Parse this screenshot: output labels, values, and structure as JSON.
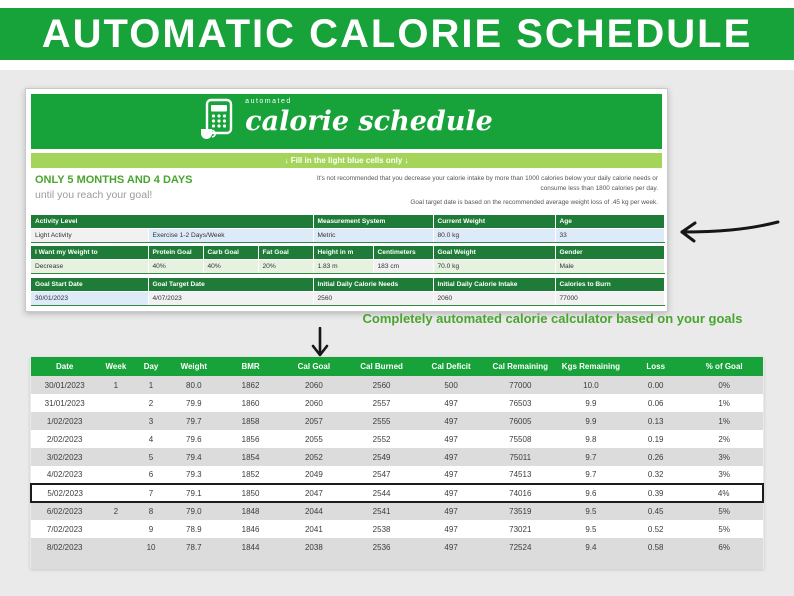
{
  "banner": {
    "title": "AUTOMATIC CALORIE SCHEDULE"
  },
  "sheet": {
    "logo": {
      "icon": "calculator-icon",
      "small_label": "automated",
      "title": "calorie schedule"
    },
    "instruction": "↓ Fill in the light blue cells only ↓",
    "duration_note": {
      "line1": "ONLY 5 MONTHS AND 4 DAYS",
      "line2": "until you reach your goal!"
    },
    "warning_note": {
      "line1": "It's not recommended that you decrease your calorie intake by more than 1000 calories below your daily calorie needs or consume less than 1800 calories per day.",
      "line2": "Goal target date is based on the recommended average weight loss of .45 kg per week."
    },
    "form": {
      "section1": {
        "headers": [
          "Activity Level",
          "Measurement System",
          "Current Weight",
          "Age"
        ],
        "values": [
          "Light Activity",
          "Exercise 1-2 Days/Week",
          "Metric",
          "80.0 kg",
          "33"
        ]
      },
      "section2": {
        "headers": [
          "I Want my Weight to",
          "Protein Goal",
          "Carb Goal",
          "Fat Goal",
          "Height in m",
          "Centimeters",
          "Goal Weight",
          "Gender"
        ],
        "values": [
          "Decrease",
          "40%",
          "40%",
          "20%",
          "1.83 m",
          "183 cm",
          "70.0 kg",
          "Male"
        ]
      },
      "section3": {
        "headers": [
          "Goal Start Date",
          "Goal Target Date",
          "Initial Daily Calorie Needs",
          "Initial Daily Calorie Intake",
          "Calories to Burn"
        ],
        "values": [
          "30/01/2023",
          "4/07/2023",
          "2560",
          "2060",
          "77000"
        ]
      }
    }
  },
  "annotation": "Completely automated calorie calculator based on your goals",
  "schedule_table": {
    "headers": [
      "Date",
      "Week",
      "Day",
      "Weight",
      "BMR",
      "Cal Goal",
      "Cal Burned",
      "Cal Deficit",
      "Cal Remaining",
      "Kgs Remaining",
      "Loss",
      "% of Goal"
    ],
    "rows": [
      {
        "shade": "gray",
        "highlight": false,
        "cells": [
          "30/01/2023",
          "1",
          "1",
          "80.0",
          "1862",
          "2060",
          "2560",
          "500",
          "77000",
          "10.0",
          "0.00",
          "0%"
        ]
      },
      {
        "shade": "white",
        "highlight": false,
        "cells": [
          "31/01/2023",
          "",
          "2",
          "79.9",
          "1860",
          "2060",
          "2557",
          "497",
          "76503",
          "9.9",
          "0.06",
          "1%"
        ]
      },
      {
        "shade": "gray",
        "highlight": false,
        "cells": [
          "1/02/2023",
          "",
          "3",
          "79.7",
          "1858",
          "2057",
          "2555",
          "497",
          "76005",
          "9.9",
          "0.13",
          "1%"
        ]
      },
      {
        "shade": "white",
        "highlight": false,
        "cells": [
          "2/02/2023",
          "",
          "4",
          "79.6",
          "1856",
          "2055",
          "2552",
          "497",
          "75508",
          "9.8",
          "0.19",
          "2%"
        ]
      },
      {
        "shade": "gray",
        "highlight": false,
        "cells": [
          "3/02/2023",
          "",
          "5",
          "79.4",
          "1854",
          "2052",
          "2549",
          "497",
          "75011",
          "9.7",
          "0.26",
          "3%"
        ]
      },
      {
        "shade": "white",
        "highlight": false,
        "cells": [
          "4/02/2023",
          "",
          "6",
          "79.3",
          "1852",
          "2049",
          "2547",
          "497",
          "74513",
          "9.7",
          "0.32",
          "3%"
        ]
      },
      {
        "shade": "white",
        "highlight": true,
        "cells": [
          "5/02/2023",
          "",
          "7",
          "79.1",
          "1850",
          "2047",
          "2544",
          "497",
          "74016",
          "9.6",
          "0.39",
          "4%"
        ]
      },
      {
        "shade": "gray",
        "highlight": false,
        "cells": [
          "6/02/2023",
          "2",
          "8",
          "79.0",
          "1848",
          "2044",
          "2541",
          "497",
          "73519",
          "9.5",
          "0.45",
          "5%"
        ]
      },
      {
        "shade": "white",
        "highlight": false,
        "cells": [
          "7/02/2023",
          "",
          "9",
          "78.9",
          "1846",
          "2041",
          "2538",
          "497",
          "73021",
          "9.5",
          "0.52",
          "5%"
        ]
      },
      {
        "shade": "gray",
        "highlight": false,
        "cells": [
          "8/02/2023",
          "",
          "10",
          "78.7",
          "1844",
          "2038",
          "2536",
          "497",
          "72524",
          "9.4",
          "0.58",
          "6%"
        ]
      }
    ]
  },
  "colors": {
    "brand_green": "#18a23a",
    "dark_green": "#1e7c38",
    "light_green_bar": "#a5d45a",
    "annotation_green": "#4aa52e",
    "input_blue": "#dcebf7",
    "input_green": "#e7f1e0",
    "row_gray": "#dcdcdc"
  }
}
